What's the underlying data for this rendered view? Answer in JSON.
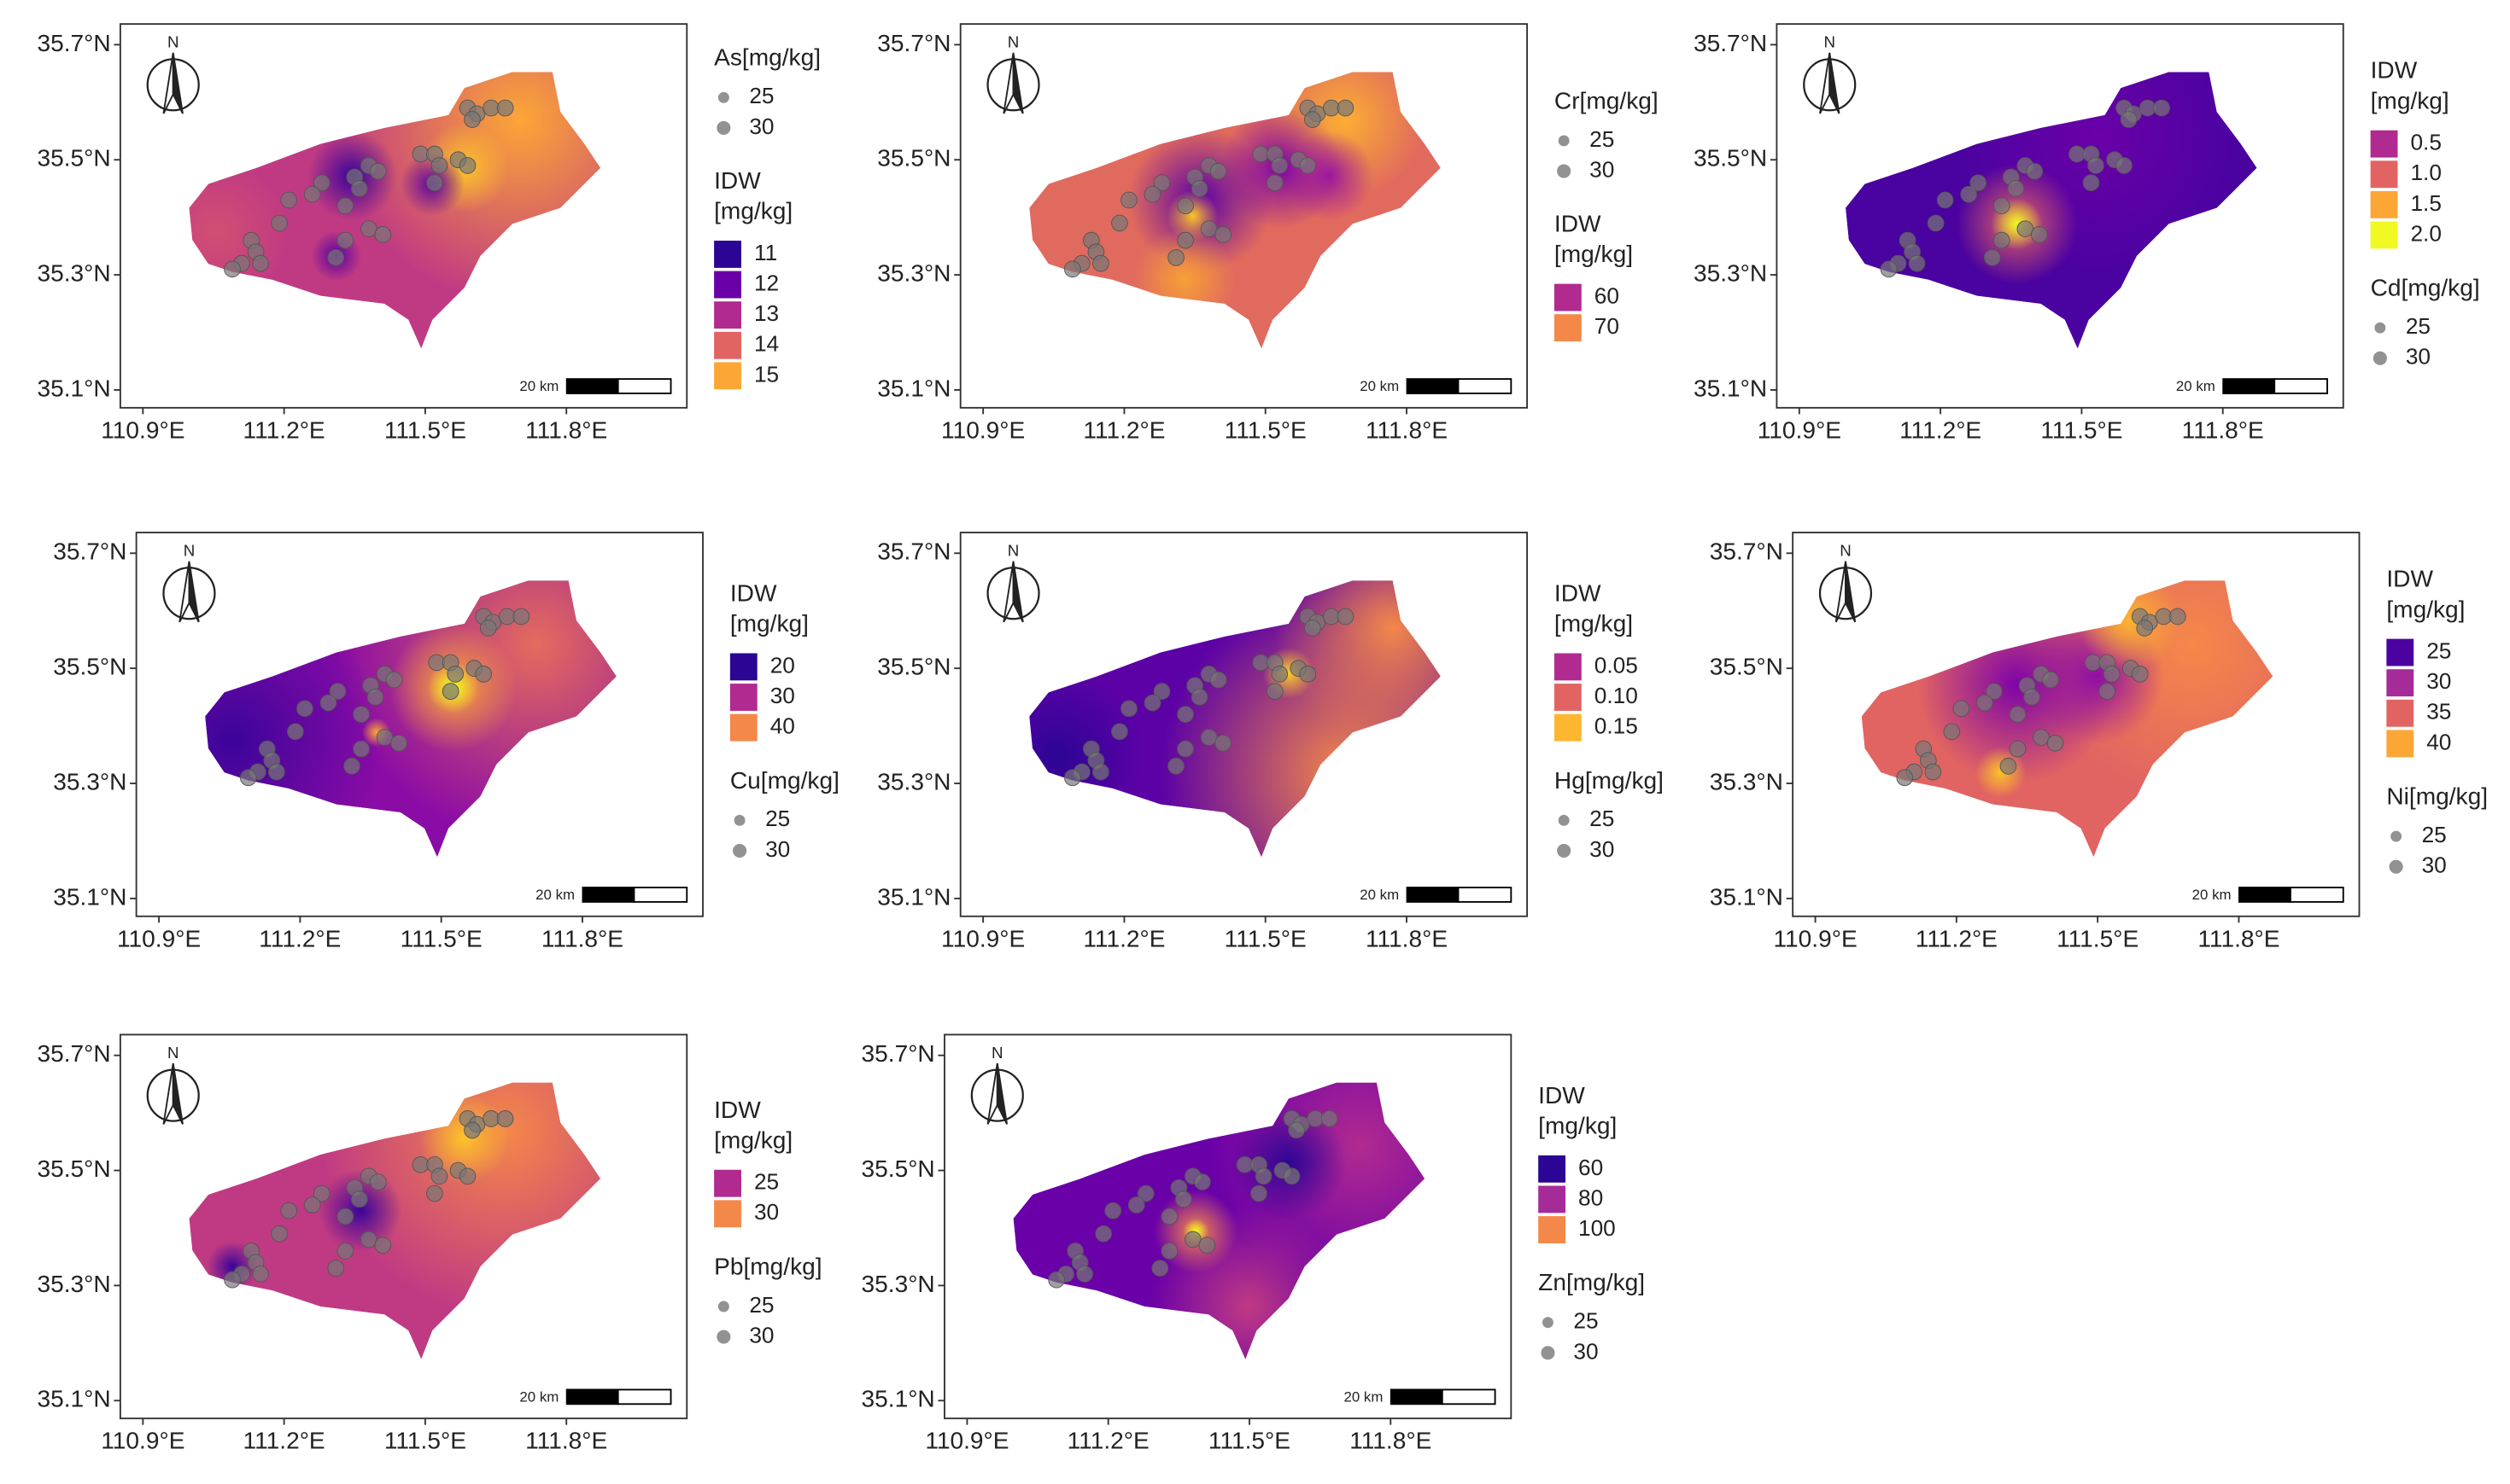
{
  "map_xlim": [
    110.852,
    112.056
  ],
  "map_ylim": [
    35.069,
    35.736
  ],
  "samples": [
    [
      111.59,
      35.59
    ],
    [
      111.61,
      35.58
    ],
    [
      111.64,
      35.59
    ],
    [
      111.67,
      35.59
    ],
    [
      111.6,
      35.57
    ],
    [
      111.49,
      35.51
    ],
    [
      111.52,
      35.51
    ],
    [
      111.53,
      35.49
    ],
    [
      111.57,
      35.5
    ],
    [
      111.59,
      35.49
    ],
    [
      111.52,
      35.46
    ],
    [
      111.38,
      35.49
    ],
    [
      111.4,
      35.48
    ],
    [
      111.35,
      35.47
    ],
    [
      111.36,
      35.45
    ],
    [
      111.28,
      35.46
    ],
    [
      111.26,
      35.44
    ],
    [
      111.33,
      35.42
    ],
    [
      111.38,
      35.38
    ],
    [
      111.41,
      35.37
    ],
    [
      111.33,
      35.36
    ],
    [
      111.31,
      35.33
    ],
    [
      111.21,
      35.43
    ],
    [
      111.19,
      35.39
    ],
    [
      111.13,
      35.36
    ],
    [
      111.14,
      35.34
    ],
    [
      111.11,
      35.32
    ],
    [
      111.15,
      35.32
    ],
    [
      111.09,
      35.31
    ]
  ],
  "panels": [
    {
      "north": "N",
      "scale_label": "20 km",
      "xticks": [
        {
          "value": 110.9,
          "label": "110.9°E"
        },
        {
          "value": 111.2,
          "label": "111.2°E"
        },
        {
          "value": 111.5,
          "label": "111.5°E"
        },
        {
          "value": 111.8,
          "label": "111.8°E"
        }
      ],
      "yticks": [
        {
          "value": 35.7,
          "label": "35.7°N"
        },
        {
          "value": 35.5,
          "label": "35.5°N"
        },
        {
          "value": 35.3,
          "label": "35.3°N"
        },
        {
          "value": 35.1,
          "label": "35.1°N"
        }
      ],
      "points": {
        "title": "As[mg/kg]",
        "levels": [
          25,
          30
        ]
      },
      "idw": {
        "title": "IDW",
        "unit": "[mg/kg]",
        "levels": [
          11,
          12,
          13,
          14,
          15
        ],
        "colors": [
          "#2c0594",
          "#6a00a8",
          "#b12a90",
          "#e16462",
          "#fca636"
        ]
      }
    },
    {
      "north": "N",
      "scale_label": "20 km",
      "xticks": [
        {
          "value": 110.9,
          "label": "110.9°E"
        },
        {
          "value": 111.2,
          "label": "111.2°E"
        },
        {
          "value": 111.5,
          "label": "111.5°E"
        },
        {
          "value": 111.8,
          "label": "111.8°E"
        }
      ],
      "yticks": [
        {
          "value": 35.7,
          "label": "35.7°N"
        },
        {
          "value": 35.5,
          "label": "35.5°N"
        },
        {
          "value": 35.3,
          "label": "35.3°N"
        },
        {
          "value": 35.1,
          "label": "35.1°N"
        }
      ],
      "points": {
        "title": "Cr[mg/kg]",
        "levels": [
          25,
          30
        ]
      },
      "idw": {
        "title": "IDW",
        "unit": "[mg/kg]",
        "levels": [
          60,
          70
        ],
        "colors": [
          "#b12a90",
          "#f48849"
        ]
      }
    },
    {
      "north": "N",
      "scale_label": "20 km",
      "xticks": [
        {
          "value": 110.9,
          "label": "110.9°E"
        },
        {
          "value": 111.2,
          "label": "111.2°E"
        },
        {
          "value": 111.5,
          "label": "111.5°E"
        },
        {
          "value": 111.8,
          "label": "111.8°E"
        }
      ],
      "yticks": [
        {
          "value": 35.7,
          "label": "35.7°N"
        },
        {
          "value": 35.5,
          "label": "35.5°N"
        },
        {
          "value": 35.3,
          "label": "35.3°N"
        },
        {
          "value": 35.1,
          "label": "35.1°N"
        }
      ],
      "idw": {
        "title": "IDW",
        "unit": "[mg/kg]",
        "levels": [
          0.5,
          {
            "value": 1,
            "label": "1.0"
          },
          1.5,
          {
            "value": 2,
            "label": "2.0"
          }
        ],
        "colors": [
          "#b12a90",
          "#e16462",
          "#fca636",
          "#f0f921"
        ]
      },
      "points": {
        "title": "Cd[mg/kg]",
        "levels": [
          25,
          30
        ]
      }
    },
    {
      "north": "N",
      "scale_label": "20 km",
      "xticks": [
        {
          "value": 110.9,
          "label": "110.9°E"
        },
        {
          "value": 111.2,
          "label": "111.2°E"
        },
        {
          "value": 111.5,
          "label": "111.5°E"
        },
        {
          "value": 111.8,
          "label": "111.8°E"
        }
      ],
      "yticks": [
        {
          "value": 35.7,
          "label": "35.7°N"
        },
        {
          "value": 35.5,
          "label": "35.5°N"
        },
        {
          "value": 35.3,
          "label": "35.3°N"
        },
        {
          "value": 35.1,
          "label": "35.1°N"
        }
      ],
      "idw": {
        "title": "IDW",
        "unit": "[mg/kg]",
        "levels": [
          20,
          30,
          40
        ],
        "colors": [
          "#2c0594",
          "#b12a90",
          "#f48849"
        ]
      },
      "points": {
        "title": "Cu[mg/kg]",
        "levels": [
          25,
          30
        ]
      }
    },
    {
      "north": "N",
      "scale_label": "20 km",
      "xticks": [
        {
          "value": 110.9,
          "label": "110.9°E"
        },
        {
          "value": 111.2,
          "label": "111.2°E"
        },
        {
          "value": 111.5,
          "label": "111.5°E"
        },
        {
          "value": 111.8,
          "label": "111.8°E"
        }
      ],
      "yticks": [
        {
          "value": 35.7,
          "label": "35.7°N"
        },
        {
          "value": 35.5,
          "label": "35.5°N"
        },
        {
          "value": 35.3,
          "label": "35.3°N"
        },
        {
          "value": 35.1,
          "label": "35.1°N"
        }
      ],
      "idw": {
        "title": "IDW",
        "unit": "[mg/kg]",
        "levels": [
          0.05,
          {
            "value": 0.1,
            "label": "0.10"
          },
          0.15
        ],
        "colors": [
          "#b12a90",
          "#e16462",
          "#fcb62f"
        ]
      },
      "points": {
        "title": "Hg[mg/kg]",
        "levels": [
          25,
          30
        ]
      }
    },
    {
      "north": "N",
      "scale_label": "20 km",
      "xticks": [
        {
          "value": 110.9,
          "label": "110.9°E"
        },
        {
          "value": 111.2,
          "label": "111.2°E"
        },
        {
          "value": 111.5,
          "label": "111.5°E"
        },
        {
          "value": 111.8,
          "label": "111.8°E"
        }
      ],
      "yticks": [
        {
          "value": 35.7,
          "label": "35.7°N"
        },
        {
          "value": 35.5,
          "label": "35.5°N"
        },
        {
          "value": 35.3,
          "label": "35.3°N"
        },
        {
          "value": 35.1,
          "label": "35.1°N"
        }
      ],
      "idw": {
        "title": "IDW",
        "unit": "[mg/kg]",
        "levels": [
          25,
          30,
          35,
          40
        ],
        "colors": [
          "#4c02a1",
          "#a52c98",
          "#e16462",
          "#fca636"
        ]
      },
      "points": {
        "title": "Ni[mg/kg]",
        "levels": [
          25,
          30
        ]
      }
    },
    {
      "north": "N",
      "scale_label": "20 km",
      "xticks": [
        {
          "value": 110.9,
          "label": "110.9°E"
        },
        {
          "value": 111.2,
          "label": "111.2°E"
        },
        {
          "value": 111.5,
          "label": "111.5°E"
        },
        {
          "value": 111.8,
          "label": "111.8°E"
        }
      ],
      "yticks": [
        {
          "value": 35.7,
          "label": "35.7°N"
        },
        {
          "value": 35.5,
          "label": "35.5°N"
        },
        {
          "value": 35.3,
          "label": "35.3°N"
        },
        {
          "value": 35.1,
          "label": "35.1°N"
        }
      ],
      "idw": {
        "title": "IDW",
        "unit": "[mg/kg]",
        "levels": [
          25,
          30
        ],
        "colors": [
          "#b12a90",
          "#f48849"
        ]
      },
      "points": {
        "title": "Pb[mg/kg]",
        "levels": [
          25,
          30
        ]
      }
    },
    {
      "north": "N",
      "scale_label": "20 km",
      "xticks": [
        {
          "value": 110.9,
          "label": "110.9°E"
        },
        {
          "value": 111.2,
          "label": "111.2°E"
        },
        {
          "value": 111.5,
          "label": "111.5°E"
        },
        {
          "value": 111.8,
          "label": "111.8°E"
        }
      ],
      "yticks": [
        {
          "value": 35.7,
          "label": "35.7°N"
        },
        {
          "value": 35.5,
          "label": "35.5°N"
        },
        {
          "value": 35.3,
          "label": "35.3°N"
        },
        {
          "value": 35.1,
          "label": "35.1°N"
        }
      ],
      "idw": {
        "title": "IDW",
        "unit": "[mg/kg]",
        "levels": [
          60,
          80,
          100
        ],
        "colors": [
          "#2c0594",
          "#a52c98",
          "#f48849"
        ]
      },
      "points": {
        "title": "Zn[mg/kg]",
        "levels": [
          25,
          30
        ]
      }
    }
  ]
}
